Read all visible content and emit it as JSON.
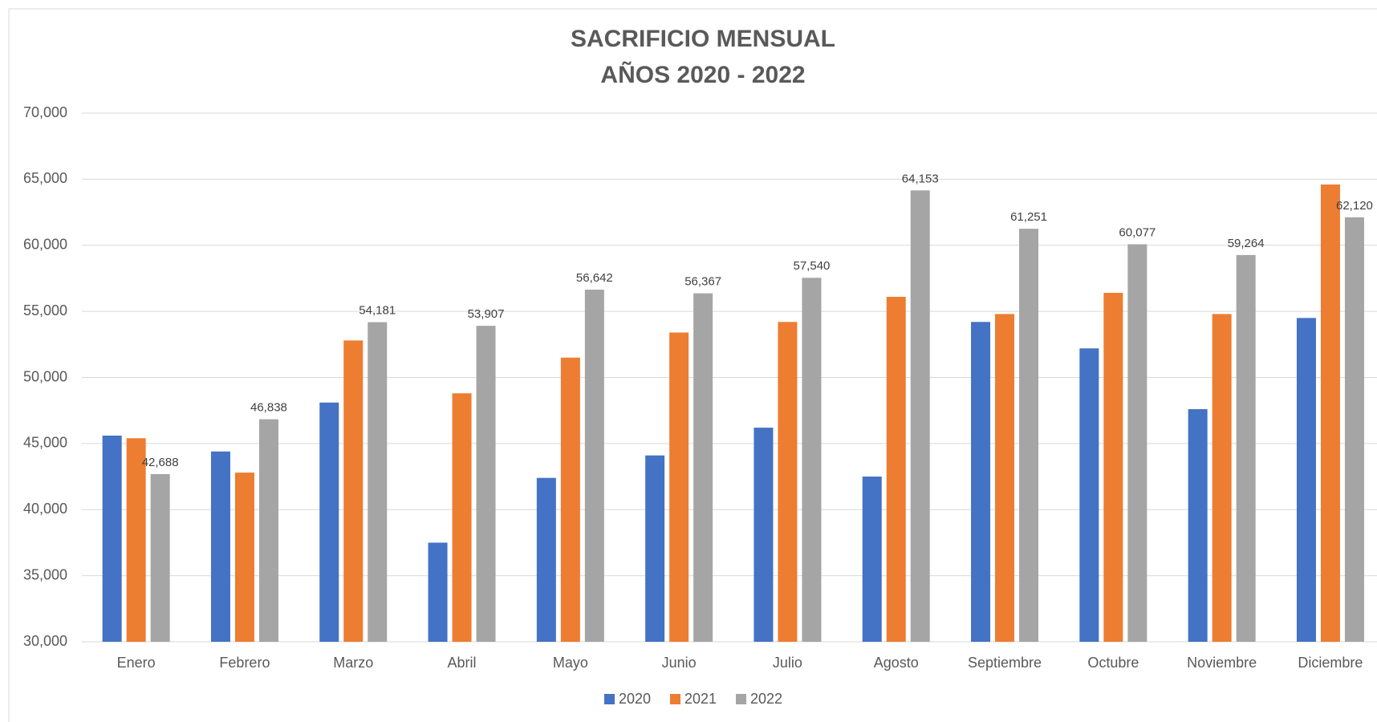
{
  "chart_data": {
    "type": "bar",
    "title": [
      "SACRIFICIO MENSUAL",
      "AÑOS 2020 - 2022"
    ],
    "categories": [
      "Enero",
      "Febrero",
      "Marzo",
      "Abril",
      "Mayo",
      "Junio",
      "Julio",
      "Agosto",
      "Septiembre",
      "Octubre",
      "Noviembre",
      "Diciembre"
    ],
    "series": [
      {
        "name": "2020",
        "color": "#4472c4",
        "values": [
          45600,
          44400,
          48100,
          37500,
          42400,
          44100,
          46200,
          42500,
          54200,
          52200,
          47600,
          54500
        ]
      },
      {
        "name": "2021",
        "color": "#ed7d31",
        "values": [
          45400,
          42800,
          52800,
          48800,
          51500,
          53400,
          54200,
          56100,
          54800,
          56400,
          54800,
          64600
        ]
      },
      {
        "name": "2022",
        "color": "#a5a5a5",
        "values": [
          42688,
          46838,
          54181,
          53907,
          56642,
          56367,
          57540,
          64153,
          61251,
          60077,
          59264,
          62120
        ],
        "value_labels": [
          "42,688",
          "46,838",
          "54,181",
          "53,907",
          "56,642",
          "56,367",
          "57,540",
          "64,153",
          "61,251",
          "60,077",
          "59,264",
          "62,120"
        ]
      }
    ],
    "ylim": [
      30000,
      70000
    ],
    "yticks": [
      {
        "value": 30000,
        "label": "30,000"
      },
      {
        "value": 35000,
        "label": "35,000"
      },
      {
        "value": 40000,
        "label": "40,000"
      },
      {
        "value": 45000,
        "label": "45,000"
      },
      {
        "value": 50000,
        "label": "50,000"
      },
      {
        "value": 55000,
        "label": "55,000"
      },
      {
        "value": 60000,
        "label": "60,000"
      },
      {
        "value": 65000,
        "label": "65,000"
      },
      {
        "value": 70000,
        "label": "70,000"
      }
    ],
    "grid": true,
    "legend": "bottom"
  }
}
